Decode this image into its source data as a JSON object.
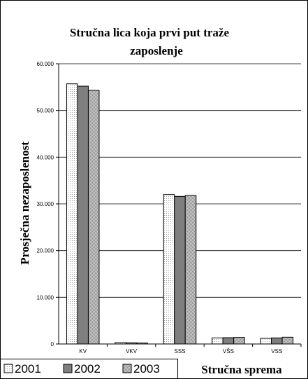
{
  "chart_data": {
    "type": "bar",
    "title_lines": [
      "Stručna lica koja prvi put traže",
      "zaposlenje"
    ],
    "xlabel": "Stručna sprema",
    "ylabel": "Prosječna nezaposlenost",
    "categories": [
      "KV",
      "VKV",
      "SSS",
      "VŠS",
      "VSS"
    ],
    "y_ticks": [
      "0",
      "10.000",
      "20.000",
      "30.000",
      "40.000",
      "50.000",
      "60.000"
    ],
    "ylim": [
      0,
      60000
    ],
    "grid": true,
    "legend_position": "bottom-left",
    "series": [
      {
        "name": "2001",
        "values": [
          55700,
          300,
          32000,
          1300,
          1200
        ],
        "fill": "#ffffff",
        "pattern": "dots"
      },
      {
        "name": "2002",
        "values": [
          55200,
          250,
          31600,
          1350,
          1300
        ],
        "fill": "#7f7f7f",
        "pattern": "solid"
      },
      {
        "name": "2003",
        "values": [
          54300,
          200,
          31800,
          1400,
          1450
        ],
        "fill": "#c0c0c0",
        "pattern": "checker"
      }
    ]
  }
}
